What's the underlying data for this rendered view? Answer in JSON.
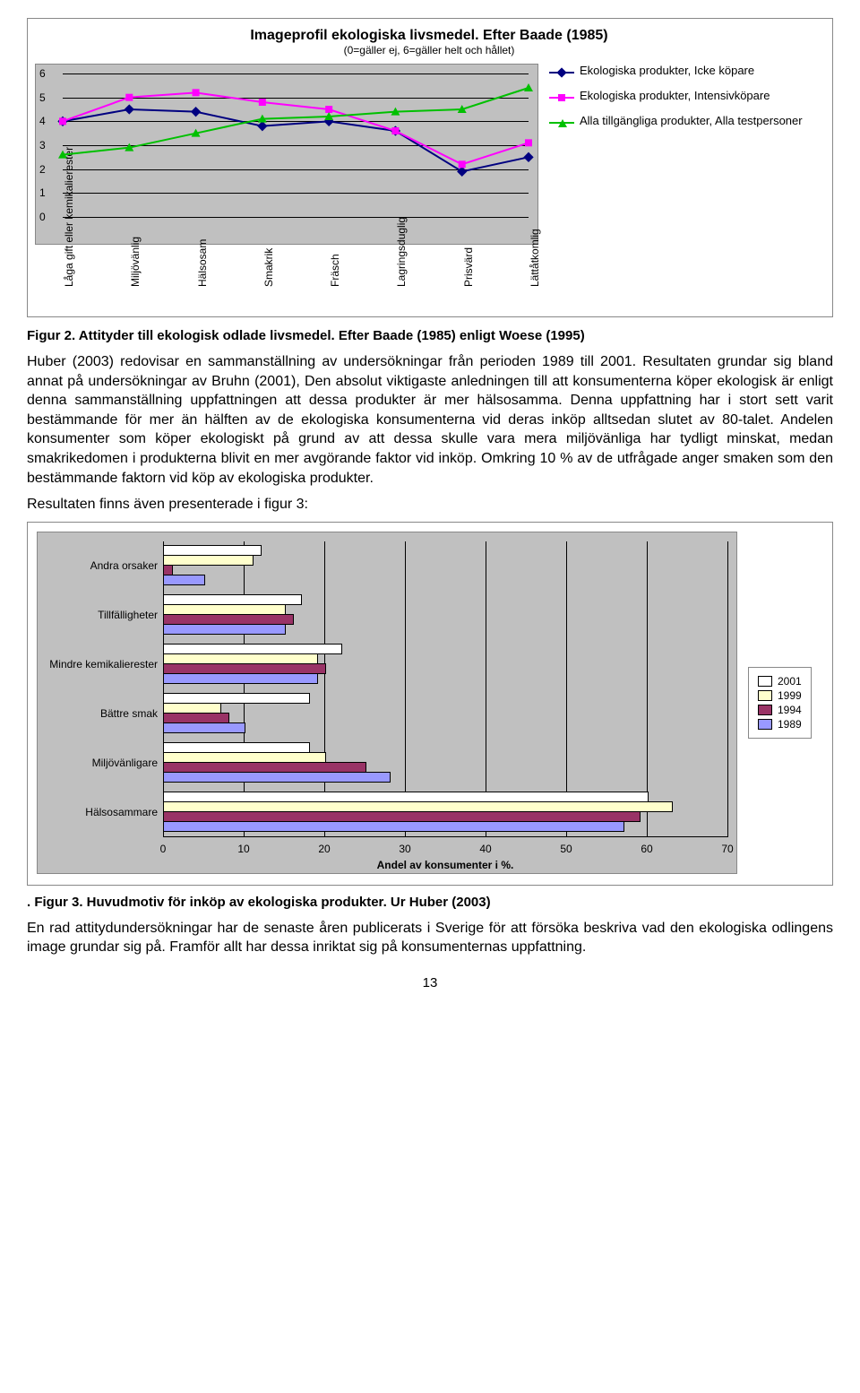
{
  "lineChart": {
    "title": "Imageprofil ekologiska livsmedel. Efter Baade (1985)",
    "subtitle": "(0=gäller ej, 6=gäller helt och hållet)",
    "ymin": 0,
    "ymax": 6,
    "ystep": 1,
    "categories": [
      "Låga gift eller\nkemikalierester",
      "Miljövänlig",
      "Hälsosam",
      "Smakrik",
      "Fräsch",
      "Lagringsduglig",
      "Prisvärd",
      "Lättåtkomlig"
    ],
    "series": [
      {
        "name": "Ekologiska produkter, Icke köpare",
        "color": "#000080",
        "marker": "diamond",
        "values": [
          4.0,
          4.5,
          4.4,
          3.8,
          4.0,
          3.6,
          1.9,
          2.5
        ]
      },
      {
        "name": "Ekologiska produkter, Intensivköpare",
        "color": "#ff00ff",
        "marker": "square",
        "values": [
          4.0,
          5.0,
          5.2,
          4.8,
          4.5,
          3.6,
          2.2,
          3.1
        ]
      },
      {
        "name": "Alla tillgängliga produkter, Alla testpersoner",
        "color": "#00c000",
        "marker": "triangle",
        "values": [
          2.6,
          2.9,
          3.5,
          4.1,
          4.2,
          4.4,
          4.5,
          5.4
        ]
      }
    ],
    "plotBg": "#c0c0c0",
    "gridColor": "#000000"
  },
  "fig2Caption": "Figur 2. Attityder till ekologisk odlade livsmedel. Efter Baade (1985) enligt Woese (1995)",
  "bodyText1": "Huber (2003) redovisar en sammanställning av undersökningar från perioden 1989 till 2001. Resultaten grundar sig bland annat på undersökningar av Bruhn (2001), Den absolut viktigaste anledningen till att konsumenterna köper ekologisk är enligt denna sammanställning uppfattningen att dessa produkter är mer hälsosamma. Denna uppfattning har i stort sett varit bestämmande för mer än hälften av de ekologiska konsumenterna vid deras inköp alltsedan slutet av 80-talet. Andelen konsumenter som köper ekologiskt på grund av att dessa skulle vara mera miljövänliga har tydligt minskat, medan smakrikedomen i produkterna blivit en mer avgörande faktor vid inköp. Omkring 10 % av de utfrågade anger smaken som den bestämmande faktorn vid köp av ekologiska produkter.",
  "bodyText2": "Resultaten finns även presenterade i figur 3:",
  "barChart": {
    "xmin": 0,
    "xmax": 70,
    "xstep": 10,
    "xlabel": "Andel av konsumenter i %.",
    "categories": [
      "Andra orsaker",
      "Tillfälligheter",
      "Mindre kemikalierester",
      "Bättre smak",
      "Miljövänligare",
      "Hälsosammare"
    ],
    "series": [
      {
        "name": "2001",
        "color": "#ffffff",
        "values": [
          12,
          17,
          22,
          18,
          18,
          60
        ]
      },
      {
        "name": "1999",
        "color": "#ffffcc",
        "values": [
          11,
          15,
          19,
          7,
          20,
          63
        ]
      },
      {
        "name": "1994",
        "color": "#993366",
        "values": [
          1,
          16,
          20,
          8,
          25,
          59
        ]
      },
      {
        "name": "1989",
        "color": "#9999ff",
        "values": [
          5,
          15,
          19,
          10,
          28,
          57
        ]
      }
    ],
    "plotBg": "#c0c0c0"
  },
  "fig3Caption": ". Figur 3. Huvudmotiv för inköp av ekologiska produkter. Ur Huber (2003)",
  "bodyText3": "En rad attitydundersökningar har de senaste åren publicerats i Sverige för att försöka beskriva vad den ekologiska odlingens image grundar sig på. Framför allt har dessa inriktat sig på konsumenternas uppfattning.",
  "pageNum": "13"
}
